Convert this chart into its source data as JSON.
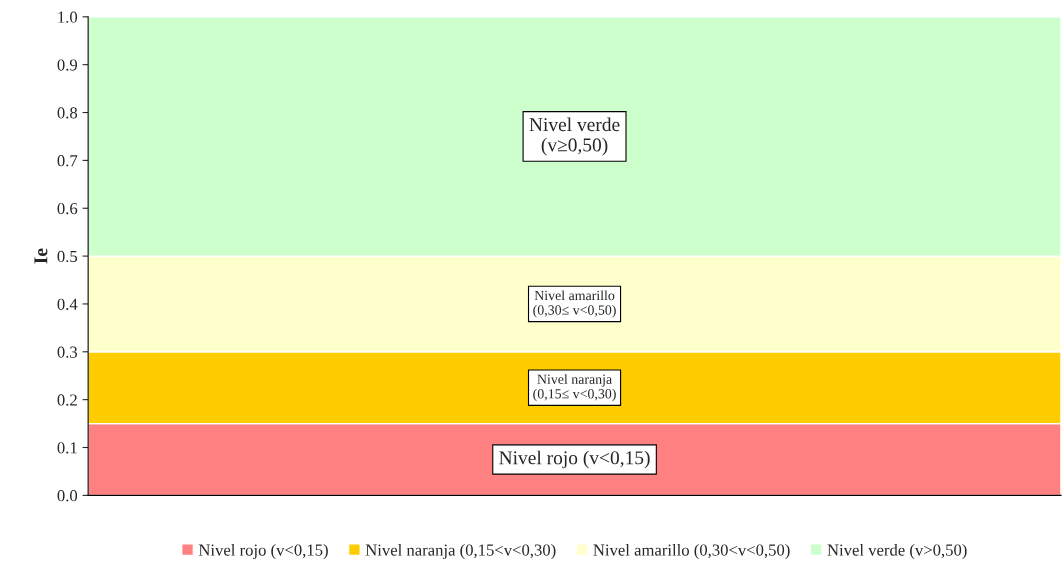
{
  "chart_data": {
    "type": "bar",
    "stacked": true,
    "ylabel": "Ie",
    "categories": [
      null
    ],
    "series": [
      {
        "name": "Nivel rojo (v<0,15)",
        "color": "#ff8080",
        "values": [
          0.15
        ]
      },
      {
        "name": "Nivel naranja (0,15<v<0,30)",
        "color": "#ffcc00",
        "values": [
          0.15
        ]
      },
      {
        "name": "Nivel amarillo (0,30<v<0,50)",
        "color": "#ffffcc",
        "values": [
          0.2
        ]
      },
      {
        "name": "Nivel verde (v>0,50)",
        "color": "#ccffcc",
        "values": [
          0.5
        ]
      }
    ],
    "annotations": [
      "Nivel rojo (v<0,15)",
      "Nivel naranja\n(0,15≤ v<0,30)",
      "Nivel amarillo\n(0,30≤ v<0,50)",
      "Nivel verde\n(v≥0,50)"
    ],
    "ylim": [
      0,
      1
    ],
    "yticks": [
      {
        "value": 0,
        "label": "0.0"
      },
      0.1,
      0.2,
      0.3,
      0.4,
      0.5,
      0.6,
      0.7,
      0.8,
      0.9,
      {
        "value": 1,
        "label": "1.0"
      }
    ],
    "tick_labels": "y",
    "grid": false,
    "legend": "bottom"
  }
}
